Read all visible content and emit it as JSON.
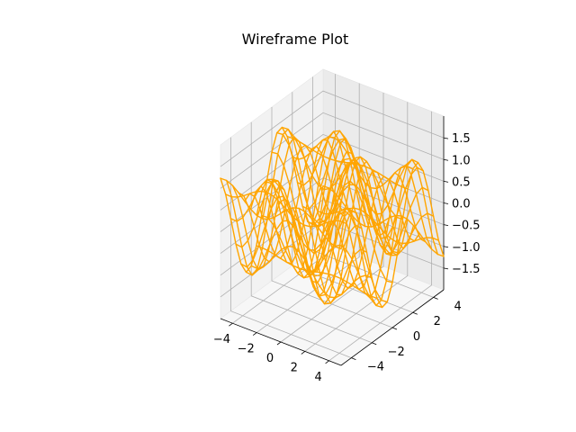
{
  "chart_data": {
    "type": "wireframe",
    "title": "Wireframe Plot",
    "function": "z = sin(x) * cos(y) + sin(y)",
    "x_range": [
      -5,
      5
    ],
    "y_range": [
      -5,
      5
    ],
    "grid_points": 21,
    "zlim": [
      -2,
      2
    ],
    "x_ticks": [
      "−4",
      "−2",
      "0",
      "2",
      "4"
    ],
    "y_ticks": [
      "−4",
      "−2",
      "0",
      "2",
      "4"
    ],
    "z_ticks": [
      "−1.5",
      "−1.0",
      "−0.5",
      "0.0",
      "0.5",
      "1.0",
      "1.5"
    ],
    "x_tick_values": [
      -4,
      -2,
      0,
      2,
      4
    ],
    "y_tick_values": [
      -4,
      -2,
      0,
      2,
      4
    ],
    "z_tick_values": [
      -1.5,
      -1.0,
      -0.5,
      0.0,
      0.5,
      1.0,
      1.5
    ],
    "series": [
      {
        "color": "#ffa500"
      }
    ],
    "grid": true
  }
}
